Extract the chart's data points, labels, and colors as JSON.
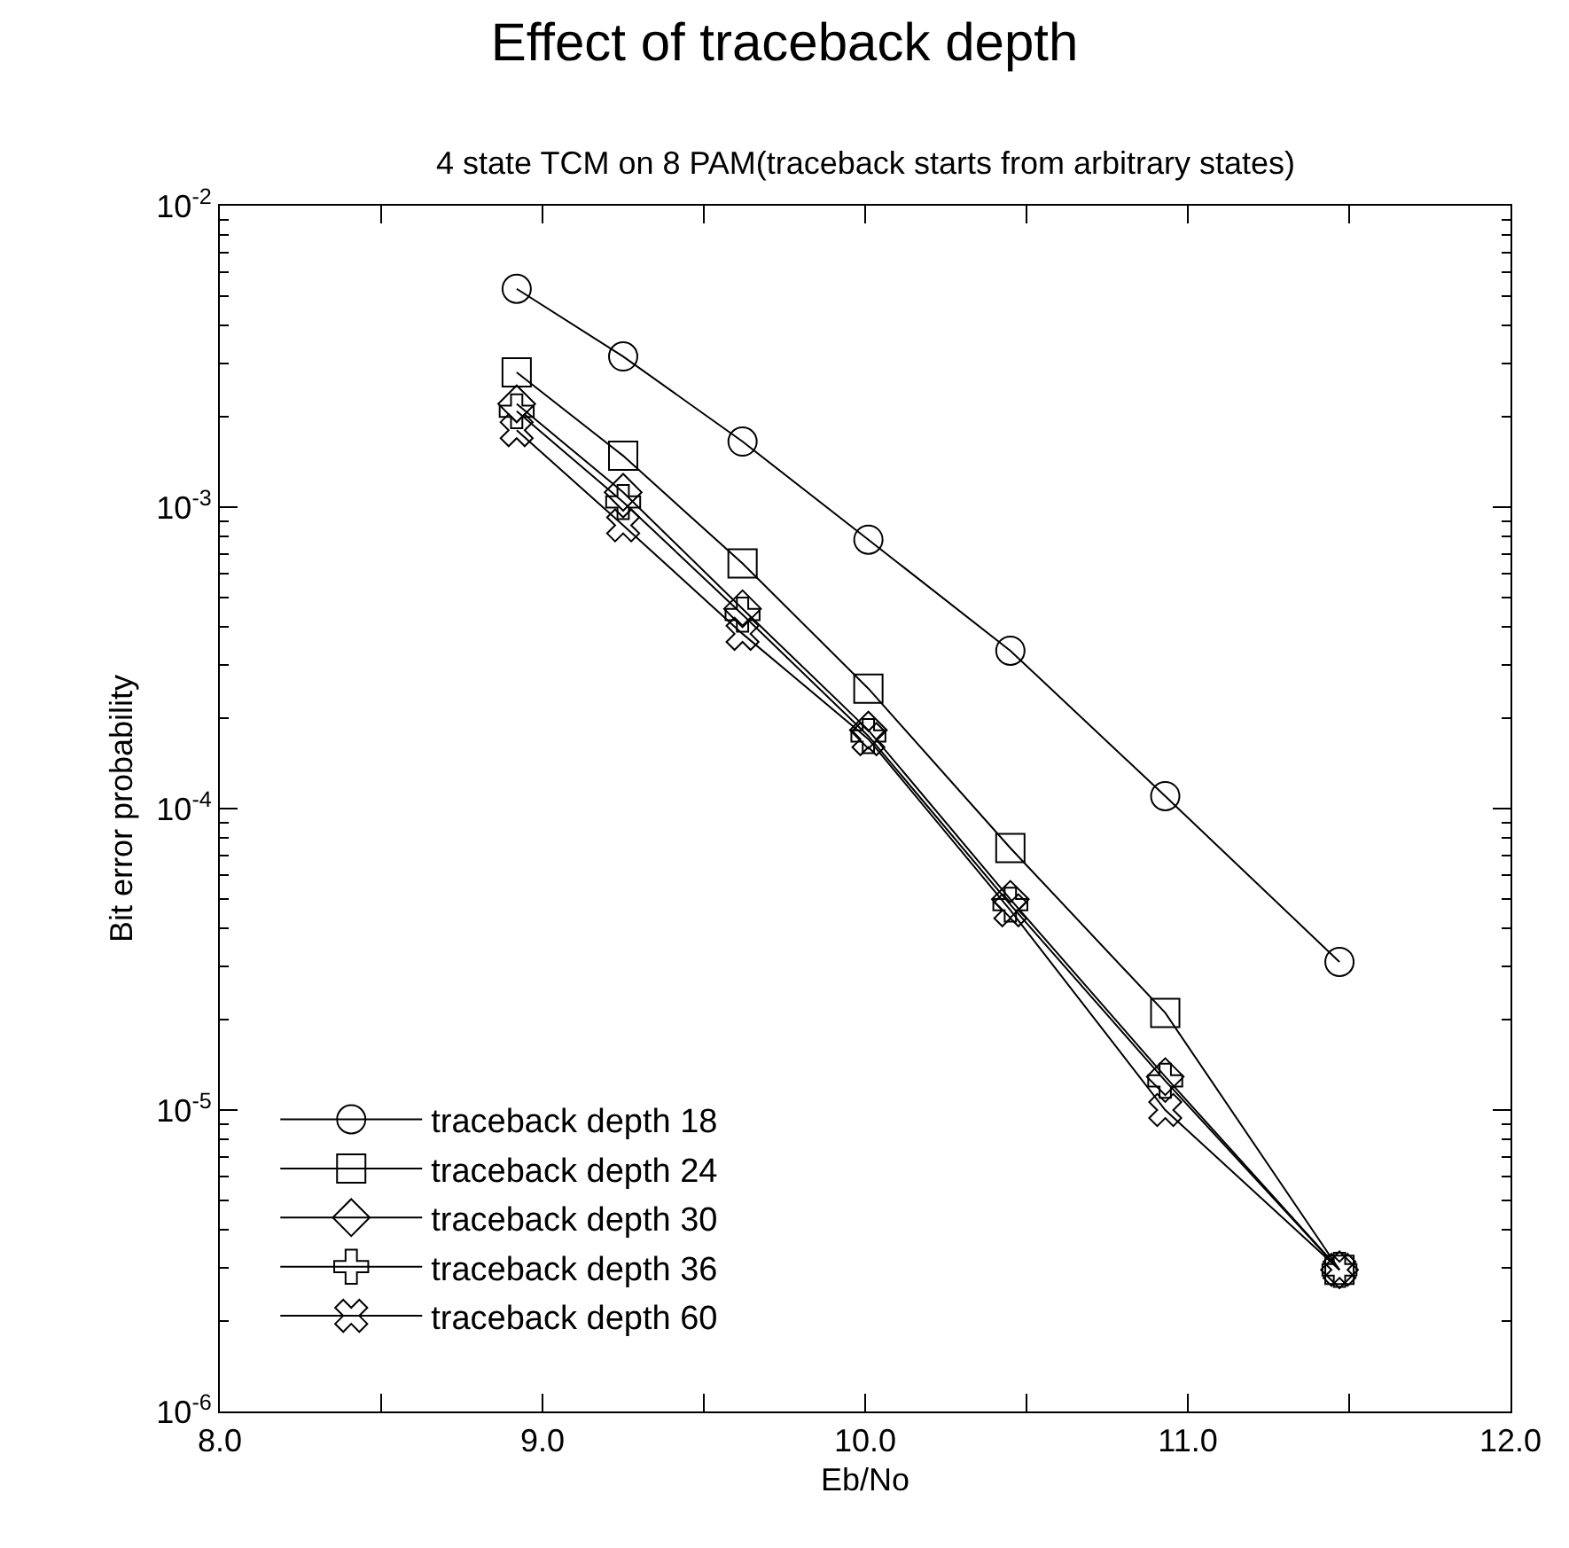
{
  "chart_data": {
    "type": "line",
    "title": "Effect of traceback depth",
    "subtitle": "4 state TCM on 8 PAM(traceback starts from arbitrary states)",
    "xlabel": "Eb/No",
    "ylabel": "Bit error probability",
    "x": [
      8.92,
      9.25,
      9.62,
      10.01,
      10.45,
      10.93,
      11.47
    ],
    "series": [
      {
        "name": "traceback depth 18",
        "color": "#000000",
        "marker": "circle",
        "values": [
          0.0053,
          0.00316,
          0.00165,
          0.00078,
          0.000334,
          0.00011,
          3.1e-05
        ]
      },
      {
        "name": "traceback depth 24",
        "color": "#000000",
        "marker": "square",
        "values": [
          0.0028,
          0.00148,
          0.00065,
          0.00025,
          7.4e-05,
          2.1e-05,
          2.95e-06
        ]
      },
      {
        "name": "traceback depth 30",
        "color": "#000000",
        "marker": "diamond",
        "values": [
          0.0022,
          0.00112,
          0.00046,
          0.000182,
          5e-05,
          1.29e-05,
          2.95e-06
        ]
      },
      {
        "name": "traceback depth 36",
        "color": "#000000",
        "marker": "cross",
        "values": [
          0.00208,
          0.00104,
          0.00044,
          0.000174,
          4.8e-05,
          1.25e-05,
          2.95e-06
        ]
      },
      {
        "name": "traceback depth 60",
        "color": "#000000",
        "marker": "x",
        "values": [
          0.0018,
          0.00087,
          0.00038,
          0.00017,
          4.6e-05,
          1e-05,
          2.95e-06
        ]
      }
    ],
    "log": "y",
    "legend": "bottom left",
    "line_style": "solid",
    "xlim": [
      8.0,
      12.0
    ],
    "xticks": [
      {
        "value": 8.0,
        "label": "8.0"
      },
      {
        "value": 8.5,
        "label": null
      },
      {
        "value": 9.0,
        "label": "9.0"
      },
      {
        "value": 9.5,
        "label": null
      },
      {
        "value": 10.0,
        "label": "10.0"
      },
      {
        "value": 10.5,
        "label": null
      },
      {
        "value": 11.0,
        "label": "11.0"
      },
      {
        "value": 11.5,
        "label": null
      },
      {
        "value": 12.0,
        "label": "12.0"
      }
    ],
    "ylim": [
      1e-06,
      0.01
    ],
    "yticks": [
      {
        "value": 1e-06,
        "label": "10$^{-6}$"
      },
      {
        "value": 1e-05,
        "label": "10$^{-5}$"
      },
      {
        "value": 0.0001,
        "label": "10$^{-4}$"
      },
      {
        "value": 0.001,
        "label": "10$^{-3}$"
      },
      {
        "value": 0.01,
        "label": "10$^{-2}$"
      }
    ]
  }
}
